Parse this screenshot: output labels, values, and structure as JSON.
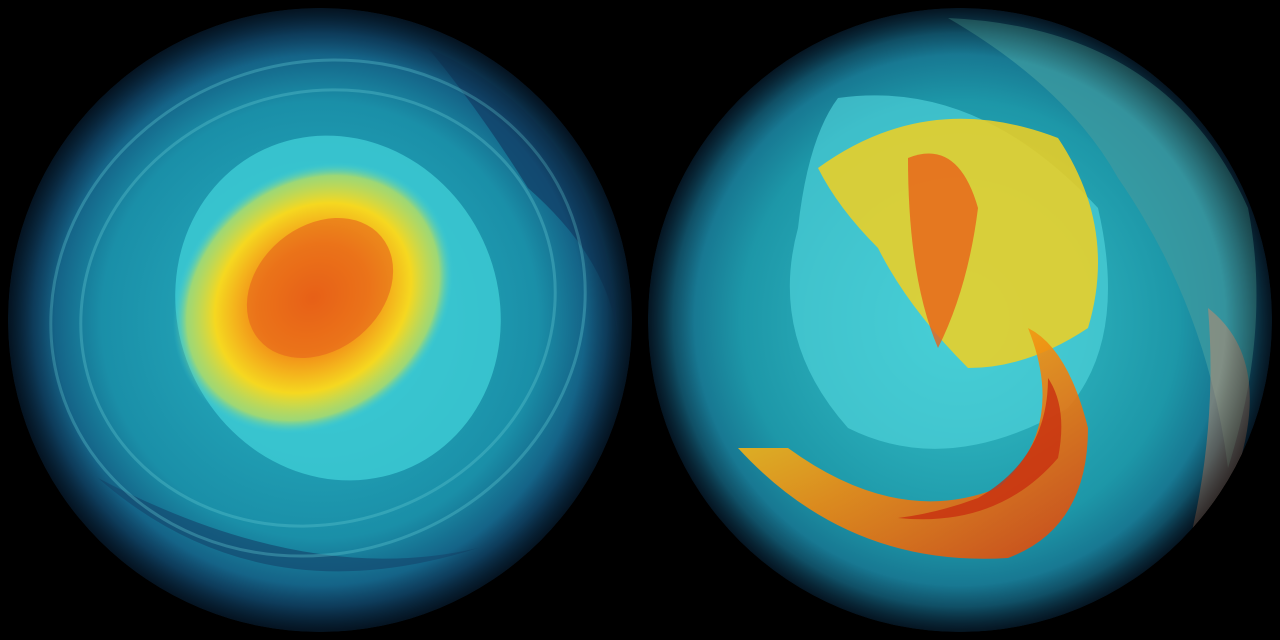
{
  "scene": {
    "globes": [
      {
        "hemisphere_view": "polar",
        "vortex_shape": "single-centered"
      },
      {
        "hemisphere_view": "polar",
        "vortex_shape": "split-distorted"
      }
    ],
    "colors": {
      "background": "#000000",
      "ocean_dark": "#0d3a5c",
      "teal": "#1a9cb0",
      "cyan": "#40d0d8",
      "yellow": "#f5e020",
      "orange": "#f08a10",
      "red": "#d84010"
    }
  }
}
